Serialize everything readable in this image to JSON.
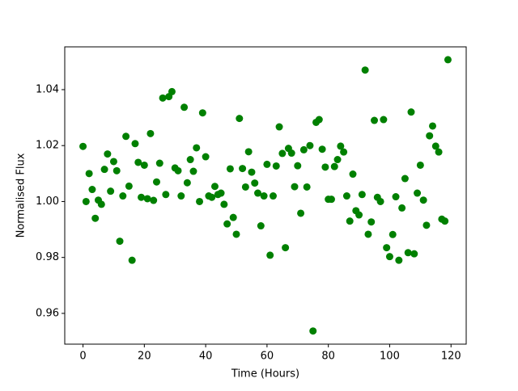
{
  "chart_data": {
    "type": "scatter",
    "x_label": "Time (Hours)",
    "y_label": "Normalised Flux",
    "color": "#008000",
    "x": [
      0,
      1,
      2,
      3,
      4,
      5,
      6,
      7,
      8,
      9,
      10,
      11,
      12,
      13,
      14,
      15,
      16,
      17,
      18,
      19,
      20,
      21,
      22,
      23,
      24,
      25,
      26,
      27,
      28,
      29,
      30,
      31,
      32,
      33,
      34,
      35,
      36,
      37,
      38,
      39,
      40,
      41,
      42,
      43,
      44,
      45,
      46,
      47,
      48,
      49,
      50,
      51,
      52,
      53,
      54,
      55,
      56,
      57,
      58,
      59,
      60,
      61,
      62,
      63,
      64,
      65,
      66,
      67,
      68,
      69,
      70,
      71,
      72,
      73,
      74,
      75,
      76,
      77,
      78,
      79,
      80,
      81,
      82,
      83,
      84,
      85,
      86,
      87,
      88,
      89,
      90,
      91,
      92,
      93,
      94,
      95,
      96,
      97,
      98,
      99,
      100,
      101,
      102,
      103,
      104,
      105,
      106,
      107,
      108,
      109,
      110,
      111,
      112,
      113,
      114,
      115,
      116,
      117,
      118,
      119
    ],
    "values": [
      1.0197,
      1.0,
      1.01,
      1.0043,
      0.994,
      1.0005,
      0.999,
      1.0115,
      1.017,
      1.0037,
      1.0143,
      1.011,
      0.9858,
      1.002,
      1.0233,
      1.0055,
      0.979,
      1.0207,
      1.014,
      1.0015,
      1.013,
      1.001,
      1.0243,
      1.0004,
      1.007,
      1.0137,
      1.037,
      1.0025,
      1.0375,
      1.0393,
      1.012,
      1.011,
      1.002,
      1.0337,
      1.0067,
      1.015,
      1.0108,
      1.0192,
      1.0,
      1.0317,
      1.016,
      1.002,
      1.0015,
      1.0054,
      1.0025,
      1.003,
      0.999,
      0.992,
      1.0117,
      0.9943,
      0.9883,
      1.0297,
      1.0118,
      1.0052,
      1.0178,
      1.0105,
      1.0066,
      1.003,
      0.9913,
      1.002,
      1.0133,
      0.9808,
      1.002,
      1.0127,
      1.0267,
      1.0172,
      0.9835,
      1.019,
      1.0173,
      1.0053,
      1.0128,
      0.9958,
      1.0185,
      1.0052,
      1.02,
      0.9537,
      1.0283,
      1.0293,
      1.0187,
      1.0123,
      1.0008,
      1.0008,
      1.0125,
      1.015,
      1.0198,
      1.0177,
      1.002,
      0.993,
      1.0098,
      0.9967,
      0.9952,
      1.0025,
      1.047,
      0.9883,
      0.9927,
      1.029,
      1.0015,
      1.0,
      1.0293,
      0.9835,
      0.9803,
      0.9882,
      1.0017,
      0.979,
      0.9977,
      1.0082,
      0.9817,
      1.032,
      0.9813,
      1.003,
      1.013,
      1.0005,
      0.9915,
      1.0235,
      1.027,
      1.0198,
      1.0177,
      0.9937,
      0.993,
      1.0507
    ],
    "xlim": [
      -5.95,
      124.95
    ],
    "ylim": [
      0.949,
      1.0553
    ],
    "xticks": [
      0,
      20,
      40,
      60,
      80,
      100,
      120
    ],
    "yticks": [
      0.96,
      0.98,
      {
        "value": 1.0,
        "label": "1.00"
      },
      1.02,
      1.04
    ],
    "grid": false
  }
}
